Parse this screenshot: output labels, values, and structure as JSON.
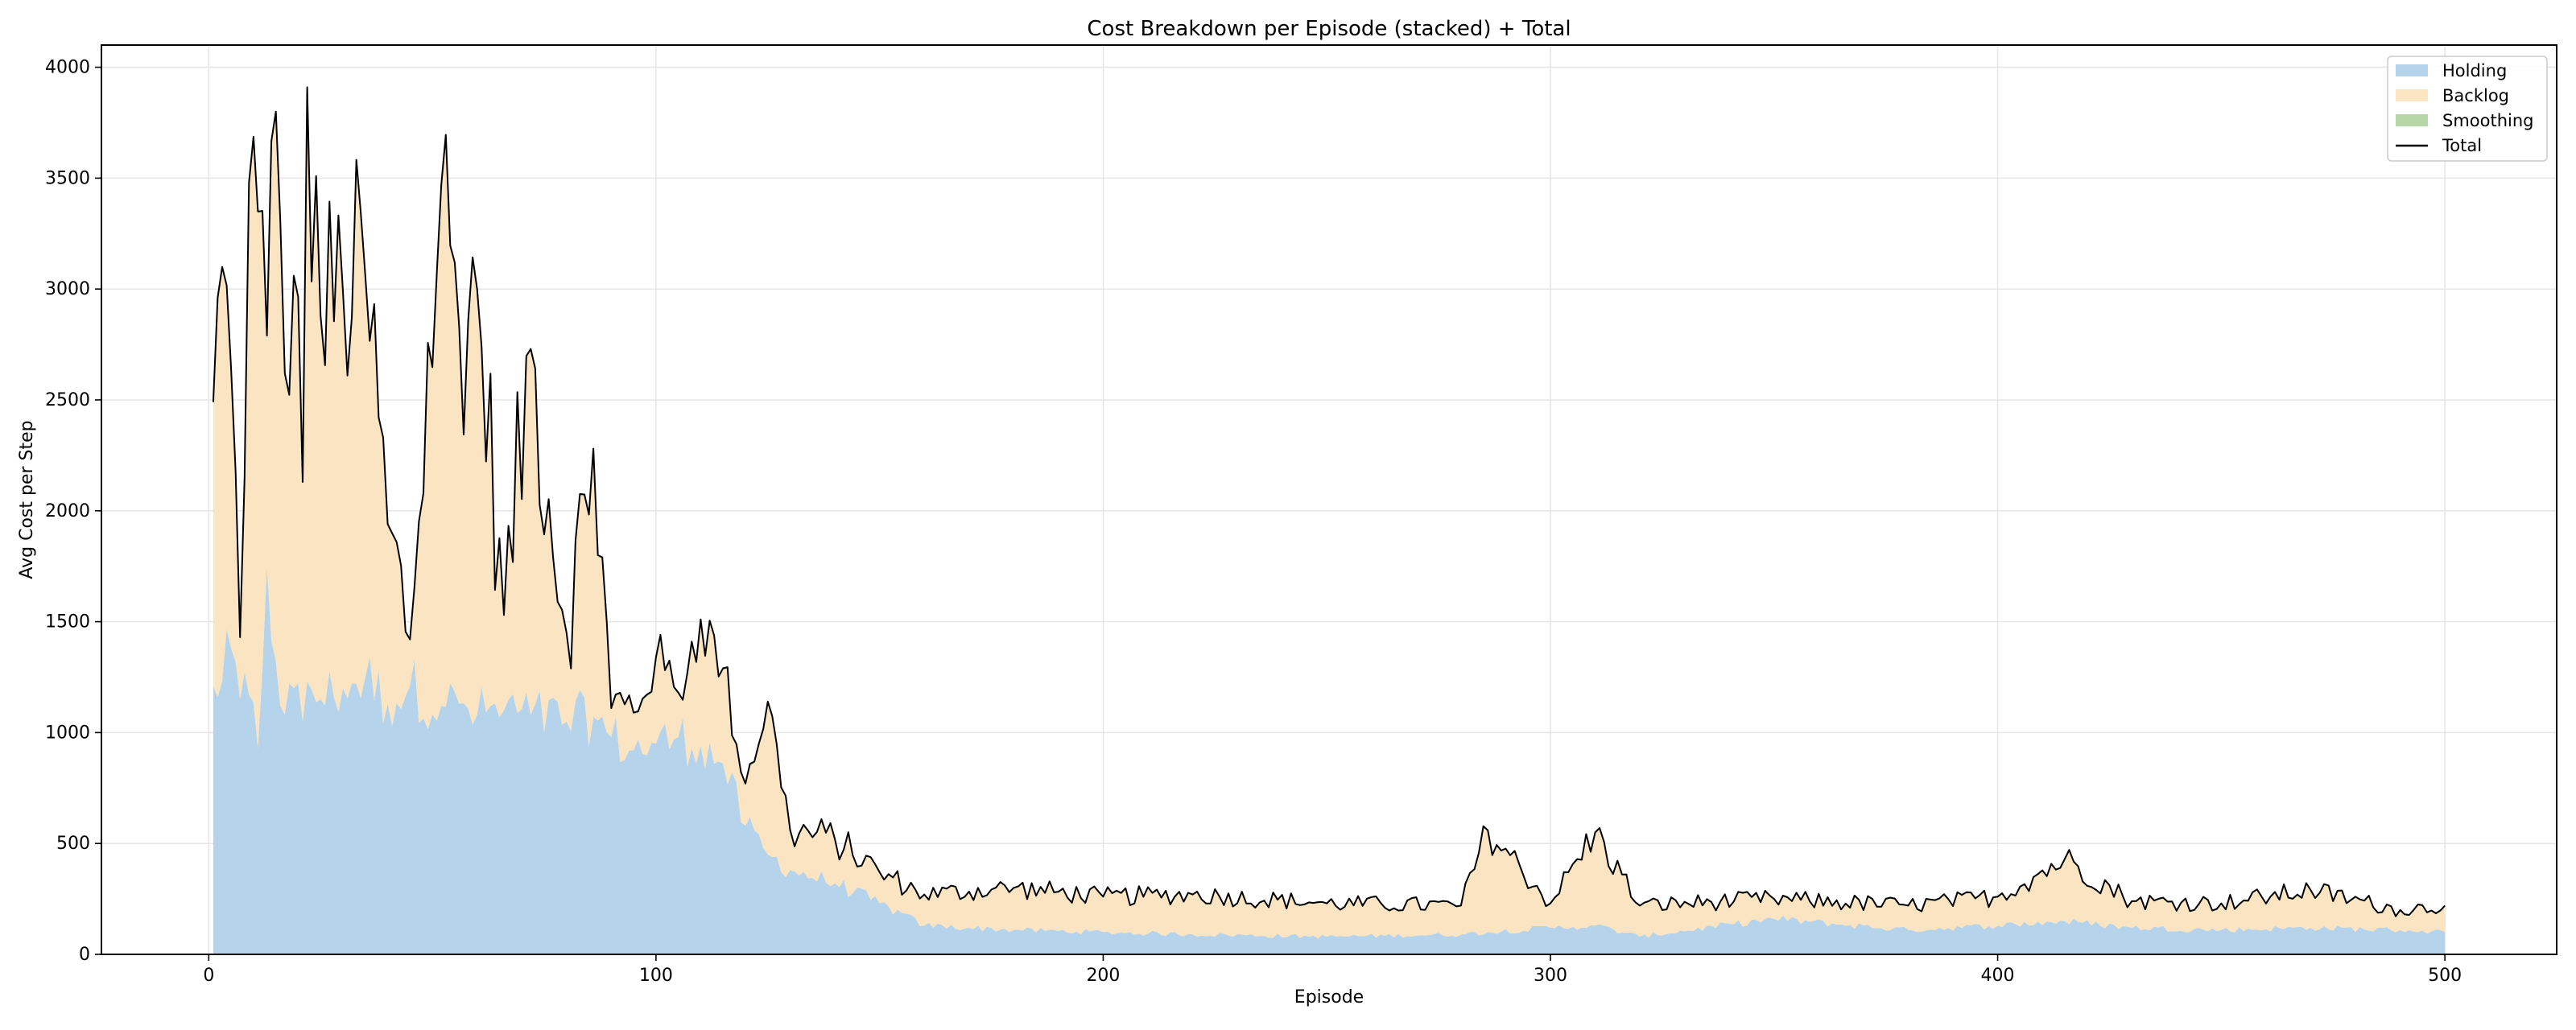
{
  "chart_data": {
    "type": "area",
    "stacked": true,
    "title": "Cost Breakdown per Episode (stacked) + Total",
    "xlabel": "Episode",
    "ylabel": "Avg Cost per Step",
    "xlim": [
      -24,
      525
    ],
    "ylim": [
      0,
      4100
    ],
    "xticks": [
      0,
      100,
      200,
      300,
      400,
      500
    ],
    "yticks": [
      0,
      500,
      1000,
      1500,
      2000,
      2500,
      3000,
      3500,
      4000
    ],
    "grid": true,
    "legend": "top-right",
    "keypoints": {
      "x": [
        1,
        3,
        5,
        7,
        9,
        11,
        13,
        15,
        17,
        19,
        21,
        22,
        25,
        30,
        35,
        40,
        45,
        52,
        56,
        60,
        66,
        72,
        80,
        86,
        90,
        95,
        100,
        105,
        110,
        115,
        120,
        125,
        130,
        140,
        150,
        160,
        180,
        200,
        220,
        250,
        280,
        286,
        300,
        310,
        320,
        350,
        380,
        400,
        415,
        430,
        450,
        470,
        490,
        500
      ],
      "total": [
        2490,
        3100,
        2640,
        1430,
        3480,
        3350,
        2790,
        3800,
        2620,
        3060,
        2130,
        3910,
        2880,
        2990,
        3060,
        1940,
        1420,
        3470,
        2830,
        3000,
        1530,
        2730,
        1450,
        2280,
        1110,
        1090,
        1340,
        1180,
        1510,
        1290,
        770,
        1140,
        560,
        520,
        370,
        270,
        300,
        260,
        270,
        230,
        220,
        560,
        230,
        550,
        220,
        250,
        220,
        260,
        430,
        240,
        230,
        290,
        200,
        220
      ],
      "holding": [
        1210,
        1230,
        1380,
        1150,
        1170,
        930,
        1750,
        1320,
        1080,
        1200,
        1050,
        1230,
        1150,
        1200,
        1250,
        1130,
        1210,
        1120,
        1130,
        1080,
        1100,
        1080,
        1050,
        1070,
        980,
        920,
        950,
        980,
        940,
        860,
        580,
        450,
        380,
        320,
        230,
        130,
        110,
        100,
        90,
        80,
        90,
        100,
        120,
        130,
        80,
        160,
        110,
        130,
        150,
        120,
        110,
        120,
        110,
        100
      ],
      "smoothing": [
        8,
        8,
        8,
        8,
        8,
        8,
        8,
        8,
        8,
        8,
        8,
        8,
        8,
        8,
        8,
        8,
        8,
        8,
        8,
        8,
        8,
        8,
        8,
        8,
        8,
        8,
        8,
        8,
        8,
        8,
        8,
        8,
        6,
        6,
        5,
        5,
        5,
        5,
        5,
        5,
        5,
        5,
        5,
        5,
        5,
        5,
        5,
        5,
        5,
        5,
        5,
        5,
        5,
        5
      ]
    },
    "episodes": 500,
    "series": [
      {
        "name": "Holding",
        "kind": "area",
        "color": "#b5d3ea"
      },
      {
        "name": "Backlog",
        "kind": "area",
        "color": "#fae4c1"
      },
      {
        "name": "Smoothing",
        "kind": "area",
        "color": "#b6d7a8"
      },
      {
        "name": "Total",
        "kind": "line",
        "color": "#000000"
      }
    ]
  }
}
